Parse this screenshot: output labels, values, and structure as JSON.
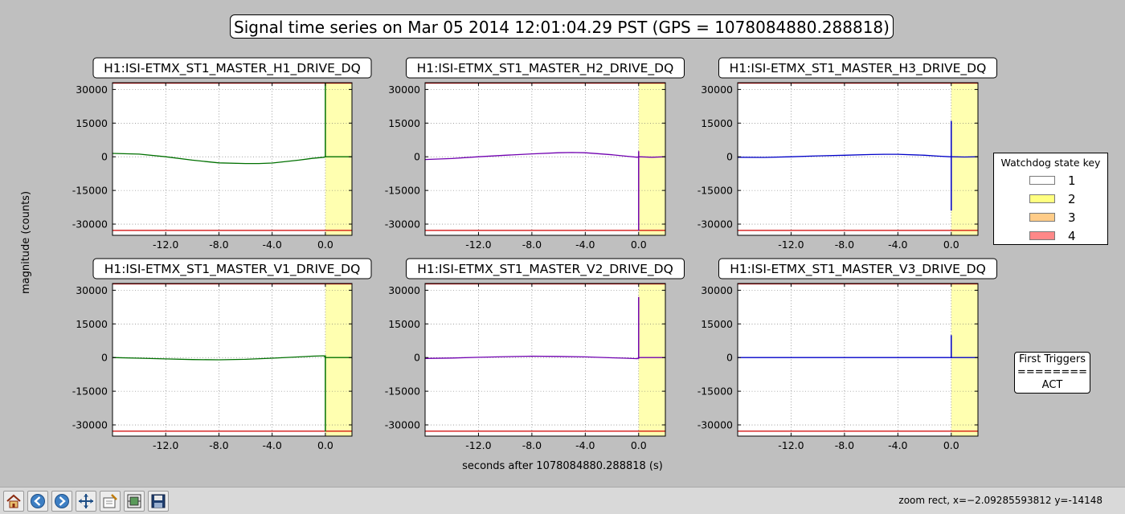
{
  "figure": {
    "title": "Signal time series on Mar 05 2014 12:01:04.29 PST (GPS = 1078084880.288818)",
    "ylabel": "magnitude (counts)",
    "xlabel": "seconds after 1078084880.288818 (s)"
  },
  "legend": {
    "title": "Watchdog state key",
    "items": [
      {
        "label": "1",
        "color": "#ffffff"
      },
      {
        "label": "2",
        "color": "#ffff80"
      },
      {
        "label": "3",
        "color": "#ffcc88"
      },
      {
        "label": "4",
        "color": "#ff8888"
      }
    ]
  },
  "triggers": {
    "title": "First Triggers",
    "separator": "========",
    "value": "ACT"
  },
  "chart_data": [
    {
      "type": "line",
      "title": "H1:ISI-ETMX_ST1_MASTER_H1_DRIVE_DQ",
      "color": "#007000",
      "xlim": [
        -16,
        2
      ],
      "ylim": [
        -35000,
        33000
      ],
      "xticks": [
        -12.0,
        -8.0,
        -4.0,
        0.0
      ],
      "yticks": [
        30000,
        15000,
        0,
        -15000,
        -30000
      ],
      "grid": true,
      "threshold_lines": [
        32800,
        -32800
      ],
      "state2_span": [
        0,
        2
      ],
      "x": [
        -16,
        -14,
        -12,
        -10,
        -8,
        -6,
        -5,
        -4,
        -2,
        -1,
        -0.1,
        0,
        1,
        2
      ],
      "y": [
        1500,
        1200,
        0,
        -1500,
        -2700,
        -3000,
        -3000,
        -2800,
        -1500,
        -700,
        -200,
        0,
        0,
        0
      ],
      "spike": {
        "x": 0,
        "y_min": -300,
        "y_max": 33000
      }
    },
    {
      "type": "line",
      "title": "H1:ISI-ETMX_ST1_MASTER_H2_DRIVE_DQ",
      "color": "#7000b0",
      "xlim": [
        -16,
        2
      ],
      "ylim": [
        -35000,
        33000
      ],
      "xticks": [
        -12.0,
        -8.0,
        -4.0,
        0.0
      ],
      "yticks": [
        30000,
        15000,
        0,
        -15000,
        -30000
      ],
      "grid": true,
      "threshold_lines": [
        32800,
        -32800
      ],
      "state2_span": [
        0,
        2
      ],
      "x": [
        -16,
        -14,
        -12,
        -10,
        -8,
        -6,
        -5,
        -4,
        -2,
        -1,
        -0.1,
        0,
        1,
        2
      ],
      "y": [
        -1200,
        -800,
        0,
        700,
        1300,
        1800,
        1900,
        1800,
        900,
        300,
        -200,
        0,
        -200,
        0
      ],
      "spike": {
        "x": 0,
        "y_min": -33000,
        "y_max": 2500
      }
    },
    {
      "type": "line",
      "title": "H1:ISI-ETMX_ST1_MASTER_H3_DRIVE_DQ",
      "color": "#0000c8",
      "xlim": [
        -16,
        2
      ],
      "ylim": [
        -35000,
        33000
      ],
      "xticks": [
        -12.0,
        -8.0,
        -4.0,
        0.0
      ],
      "yticks": [
        30000,
        15000,
        0,
        -15000,
        -30000
      ],
      "grid": true,
      "threshold_lines": [
        32800,
        -32800
      ],
      "state2_span": [
        0,
        2
      ],
      "x": [
        -16,
        -14,
        -12,
        -10,
        -8,
        -6,
        -5,
        -4,
        -2,
        -1,
        -0.1,
        0,
        1,
        2
      ],
      "y": [
        -200,
        -300,
        0,
        400,
        700,
        1000,
        1100,
        1100,
        700,
        300,
        0,
        0,
        -100,
        0
      ],
      "spike": {
        "x": 0,
        "y_min": -24000,
        "y_max": 16000
      }
    },
    {
      "type": "line",
      "title": "H1:ISI-ETMX_ST1_MASTER_V1_DRIVE_DQ",
      "color": "#007000",
      "xlim": [
        -16,
        2
      ],
      "ylim": [
        -35000,
        33000
      ],
      "xticks": [
        -12.0,
        -8.0,
        -4.0,
        0.0
      ],
      "yticks": [
        30000,
        15000,
        0,
        -15000,
        -30000
      ],
      "grid": true,
      "threshold_lines": [
        32800,
        -32800
      ],
      "state2_span": [
        0,
        2
      ],
      "x": [
        -16,
        -14,
        -12,
        -10,
        -8,
        -6,
        -4,
        -2,
        -1,
        -0.1,
        0,
        1,
        2
      ],
      "y": [
        0,
        -300,
        -600,
        -900,
        -1000,
        -800,
        -300,
        300,
        600,
        800,
        0,
        0,
        0
      ],
      "spike": {
        "x": 0,
        "y_min": -33000,
        "y_max": 1000
      }
    },
    {
      "type": "line",
      "title": "H1:ISI-ETMX_ST1_MASTER_V2_DRIVE_DQ",
      "color": "#7000b0",
      "xlim": [
        -16,
        2
      ],
      "ylim": [
        -35000,
        33000
      ],
      "xticks": [
        -12.0,
        -8.0,
        -4.0,
        0.0
      ],
      "yticks": [
        30000,
        15000,
        0,
        -15000,
        -30000
      ],
      "grid": true,
      "threshold_lines": [
        32800,
        -32800
      ],
      "state2_span": [
        0,
        2
      ],
      "x": [
        -16,
        -14,
        -12,
        -10,
        -8,
        -6,
        -4,
        -2,
        -1,
        -0.1,
        0,
        1,
        2
      ],
      "y": [
        -400,
        -200,
        100,
        400,
        600,
        500,
        300,
        -100,
        -300,
        -500,
        0,
        0,
        0
      ],
      "spike": {
        "x": 0,
        "y_min": -600,
        "y_max": 27000
      }
    },
    {
      "type": "line",
      "title": "H1:ISI-ETMX_ST1_MASTER_V3_DRIVE_DQ",
      "color": "#0000c8",
      "xlim": [
        -16,
        2
      ],
      "ylim": [
        -35000,
        33000
      ],
      "xticks": [
        -12.0,
        -8.0,
        -4.0,
        0.0
      ],
      "yticks": [
        30000,
        15000,
        0,
        -15000,
        -30000
      ],
      "grid": true,
      "threshold_lines": [
        32800,
        -32800
      ],
      "state2_span": [
        0,
        2
      ],
      "x": [
        -16,
        -14,
        -12,
        -10,
        -8,
        -6,
        -4,
        -2,
        -1,
        -0.1,
        0,
        1,
        2
      ],
      "y": [
        0,
        0,
        0,
        0,
        0,
        0,
        0,
        0,
        0,
        0,
        0,
        0,
        0
      ],
      "spike": {
        "x": 0,
        "y_min": -300,
        "y_max": 10000
      }
    }
  ],
  "toolbar": {
    "buttons": [
      {
        "name": "home-icon"
      },
      {
        "name": "back-arrow-icon"
      },
      {
        "name": "forward-arrow-icon"
      },
      {
        "name": "pan-move-icon"
      },
      {
        "name": "zoom-rect-icon"
      },
      {
        "name": "configure-subplots-icon"
      },
      {
        "name": "save-floppy-icon"
      }
    ],
    "status": "zoom rect, x=−2.09285593812   y=-14148"
  }
}
